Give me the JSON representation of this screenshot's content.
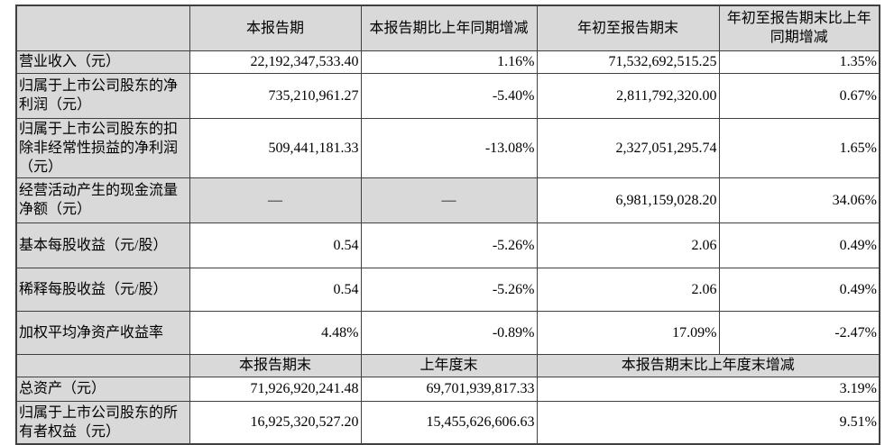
{
  "colors": {
    "cell_shade": "#d9d9d9",
    "border": "#404040",
    "text": "#000000",
    "page_bg": "#ffffff"
  },
  "table": {
    "header_top": {
      "corner": "",
      "current_period": "本报告期",
      "current_yoy": "本报告期比上年同期增减",
      "ytd": "年初至报告期末",
      "ytd_yoy": "年初至报告期末比上年同期增减"
    },
    "rows_top": [
      {
        "label": "营业收入（元）",
        "current": "22,192,347,533.40",
        "yoy": "1.16%",
        "ytd": "71,532,692,515.25",
        "ytd_yoy": "1.35%"
      },
      {
        "label": "归属于上市公司股东的净利润（元）",
        "current": "735,210,961.27",
        "yoy": "-5.40%",
        "ytd": "2,811,792,320.00",
        "ytd_yoy": "0.67%"
      },
      {
        "label": "归属于上市公司股东的扣除非经常性损益的净利润（元）",
        "current": "509,441,181.33",
        "yoy": "-13.08%",
        "ytd": "2,327,051,295.74",
        "ytd_yoy": "1.65%"
      },
      {
        "label": "经营活动产生的现金流量净额（元）",
        "current": "—",
        "yoy": "—",
        "ytd": "6,981,159,028.20",
        "ytd_yoy": "34.06%"
      },
      {
        "label": "基本每股收益（元/股）",
        "current": "0.54",
        "yoy": "-5.26%",
        "ytd": "2.06",
        "ytd_yoy": "0.49%"
      },
      {
        "label": "稀释每股收益（元/股）",
        "current": "0.54",
        "yoy": "-5.26%",
        "ytd": "2.06",
        "ytd_yoy": "0.49%"
      },
      {
        "label": "加权平均净资产收益率",
        "current": "4.48%",
        "yoy": "-0.89%",
        "ytd": "17.09%",
        "ytd_yoy": "-2.47%"
      }
    ],
    "header_bottom": {
      "corner": "",
      "period_end": "本报告期末",
      "prev_year_end": "上年度末",
      "end_change": "本报告期末比上年度末增减"
    },
    "rows_bottom": [
      {
        "label": "总资产（元）",
        "period_end": "71,926,920,241.48",
        "prev_year_end": "69,701,939,817.33",
        "change": "3.19%"
      },
      {
        "label": "归属于上市公司股东的所有者权益（元）",
        "period_end": "16,925,320,527.20",
        "prev_year_end": "15,455,626,606.63",
        "change": "9.51%"
      }
    ]
  }
}
